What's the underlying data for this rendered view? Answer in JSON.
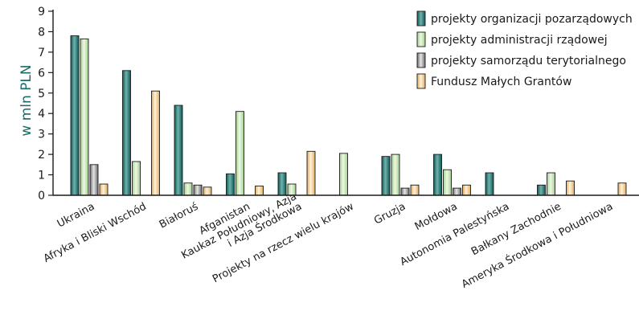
{
  "chart_data": {
    "type": "bar",
    "ylabel": "w mln PLN",
    "ylim": [
      0,
      9
    ],
    "yticks": [
      0,
      1,
      2,
      3,
      4,
      5,
      6,
      7,
      8,
      9
    ],
    "grid": false,
    "legend_position": "top-right",
    "categories": [
      "Ukraina",
      "Afryka i Bliski Wschód",
      "Białoruś",
      "Afganistan",
      "Kaukaz Południowy, Azja i Azja Środkowa",
      "Projekty na rzecz wielu krajów",
      "Gruzja",
      "Mołdowa",
      "Autonomia Palestyńska",
      "Bałkany Zachodnie",
      "Ameryka Środkowa i Południowa"
    ],
    "category_lines": [
      [
        "Ukraina"
      ],
      [
        "Afryka i Bliski Wschód"
      ],
      [
        "Białoruś"
      ],
      [
        "Afganistan"
      ],
      [
        "Kaukaz Południowy, Azja",
        "i Azja Środkowa"
      ],
      [
        "Projekty na rzecz wielu krajów"
      ],
      [
        "Gruzja"
      ],
      [
        "Mołdowa"
      ],
      [
        "Autonomia Palestyńska"
      ],
      [
        "Bałkany Zachodnie"
      ],
      [
        "Ameryka Środkowa i Południowa"
      ]
    ],
    "series": [
      {
        "name": "projekty organizacji pozarządowych",
        "values": [
          7.8,
          6.1,
          4.4,
          1.05,
          1.1,
          null,
          1.9,
          2.0,
          1.1,
          0.5,
          null
        ],
        "color_light": "#6fb3ae",
        "color_dark": "#0f5955"
      },
      {
        "name": "projekty administracji rządowej",
        "values": [
          7.65,
          1.65,
          0.6,
          4.1,
          0.55,
          2.05,
          2.0,
          1.25,
          null,
          1.1,
          null
        ],
        "color_light": "#eef8e4",
        "color_dark": "#a3cf90"
      },
      {
        "name": "projekty samorządu terytorialnego",
        "values": [
          1.5,
          null,
          0.5,
          null,
          null,
          null,
          0.35,
          0.35,
          null,
          null,
          null
        ],
        "color_light": "#e6e6e6",
        "color_dark": "#6b6b6b"
      },
      {
        "name": "Fundusz Małych Grantów",
        "values": [
          0.55,
          5.1,
          0.4,
          0.45,
          2.15,
          null,
          0.5,
          0.5,
          null,
          0.7,
          0.6
        ],
        "color_light": "#fff1d9",
        "color_dark": "#e2ad63"
      }
    ]
  },
  "colors": {
    "axis": "#1a1a1a",
    "text": "#1a1a1a",
    "ylabel": "#1b6b67"
  }
}
